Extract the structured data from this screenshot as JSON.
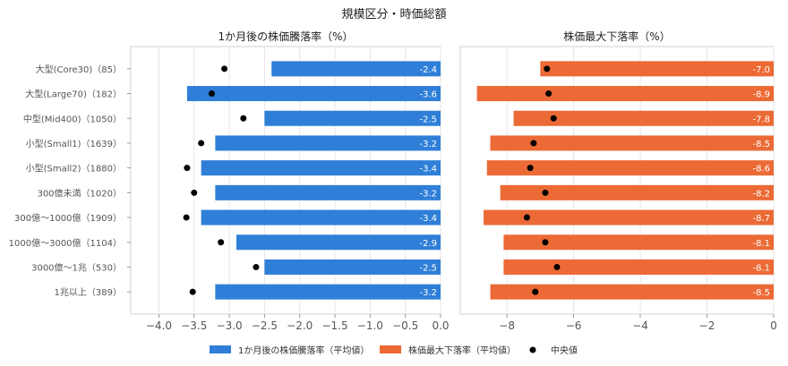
{
  "suptitle": "規模区分・時価総額",
  "colors": {
    "bar_left": "#2f7fd8",
    "bar_right": "#ec6a35",
    "median_dot": "#000000",
    "grid": "#e6e6e6",
    "axis_text": "#555555",
    "value_text": "#ffffff"
  },
  "chart_data": [
    {
      "type": "bar",
      "orientation": "horizontal",
      "title": "1か月後の株価騰落率（%）",
      "categories": [
        "大型(Core30)（85）",
        "大型(Large70)（182）",
        "中型(Mid400)（1050）",
        "小型(Small1)（1639）",
        "小型(Small2)（1880）",
        "300億未満（1020）",
        "300億〜1000億（1909）",
        "1000億〜3000億（1104）",
        "3000億〜1兆（530）",
        "1兆以上（389）"
      ],
      "series": [
        {
          "name": "1か月後の株価騰落率（平均値）",
          "kind": "bar",
          "values": [
            -2.4,
            -3.6,
            -2.5,
            -3.2,
            -3.4,
            -3.2,
            -3.4,
            -2.9,
            -2.5,
            -3.2
          ],
          "labels": [
            "-2.4",
            "-3.6",
            "-2.5",
            "-3.2",
            "-3.4",
            "-3.2",
            "-3.4",
            "-2.9",
            "-2.5",
            "-3.2"
          ]
        },
        {
          "name": "中央値",
          "kind": "point",
          "values": [
            -3.07,
            -3.25,
            -2.8,
            -3.4,
            -3.6,
            -3.5,
            -3.61,
            -3.12,
            -2.62,
            -3.52
          ]
        }
      ],
      "xlim": [
        -4.4,
        0.0
      ],
      "xticks": [
        -4.0,
        -3.5,
        -3.0,
        -2.5,
        -2.0,
        -1.5,
        -1.0,
        -0.5,
        0.0
      ],
      "xtick_labels": [
        "−4.0",
        "−3.5",
        "−3.0",
        "−2.5",
        "−2.0",
        "−1.5",
        "−1.0",
        "−0.5",
        "0.0"
      ],
      "grid": true
    },
    {
      "type": "bar",
      "orientation": "horizontal",
      "title": "株価最大下落率（%）",
      "categories": [
        "大型(Core30)（85）",
        "大型(Large70)（182）",
        "中型(Mid400)（1050）",
        "小型(Small1)（1639）",
        "小型(Small2)（1880）",
        "300億未満（1020）",
        "300億〜1000億（1909）",
        "1000億〜3000億（1104）",
        "3000億〜1兆（530）",
        "1兆以上（389）"
      ],
      "series": [
        {
          "name": "株価最大下落率（平均値）",
          "kind": "bar",
          "values": [
            -7.0,
            -8.9,
            -7.8,
            -8.5,
            -8.6,
            -8.2,
            -8.7,
            -8.1,
            -8.1,
            -8.5
          ],
          "labels": [
            "-7.0",
            "-8.9",
            "-7.8",
            "-8.5",
            "-8.6",
            "-8.2",
            "-8.7",
            "-8.1",
            "-8.1",
            "-8.5"
          ]
        },
        {
          "name": "中央値",
          "kind": "point",
          "values": [
            -6.8,
            -6.75,
            -6.6,
            -7.2,
            -7.3,
            -6.85,
            -7.4,
            -6.85,
            -6.5,
            -7.15
          ]
        }
      ],
      "xlim": [
        -9.4,
        0.0
      ],
      "xticks": [
        -8,
        -6,
        -4,
        -2,
        0
      ],
      "xtick_labels": [
        "−8",
        "−6",
        "−4",
        "−2",
        "0"
      ],
      "grid": true
    }
  ],
  "legend": {
    "placement": "bottom",
    "items": [
      {
        "label": "1か月後の株価騰落率（平均値）",
        "kind": "bar",
        "color_key": "bar_left"
      },
      {
        "label": "株価最大下落率（平均値）",
        "kind": "bar",
        "color_key": "bar_right"
      },
      {
        "label": "中央値",
        "kind": "point",
        "color_key": "median_dot"
      }
    ]
  }
}
